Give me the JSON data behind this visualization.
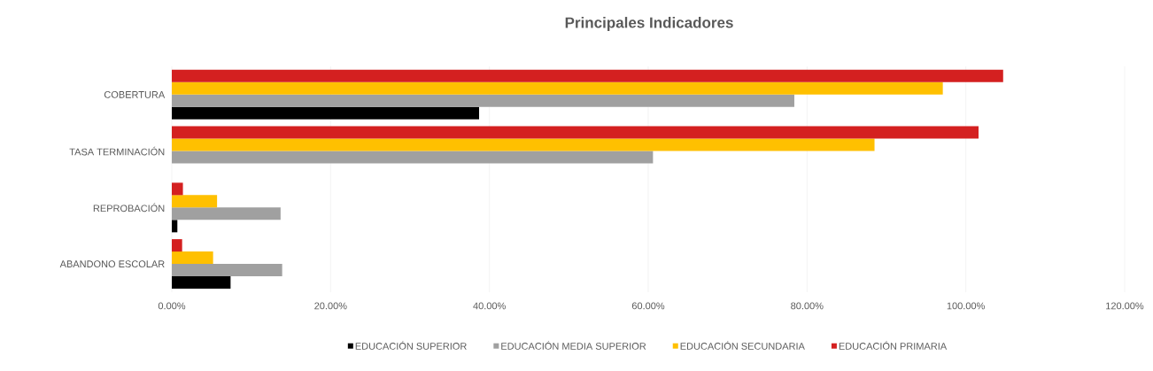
{
  "chart_data": {
    "type": "bar",
    "orientation": "horizontal",
    "title": "Principales Indicadores",
    "categories": [
      "COBERTURA",
      "TASA TERMINACIÓN",
      "REPROBACIÓN",
      "ABANDONO ESCOLAR"
    ],
    "series": [
      {
        "name": "EDUCACIÓN SUPERIOR",
        "color": "#000000",
        "values": [
          38.7,
          null,
          0.7,
          7.4
        ]
      },
      {
        "name": "EDUCACIÓN MEDIA SUPERIOR",
        "color": "#a0a0a0",
        "values": [
          78.4,
          60.6,
          13.7,
          13.9
        ]
      },
      {
        "name": "EDUCACIÓN SECUNDARIA",
        "color": "#ffc000",
        "values": [
          97.1,
          88.5,
          5.7,
          5.2
        ]
      },
      {
        "name": "EDUCACIÓN PRIMARIA",
        "color": "#d42020",
        "values": [
          104.7,
          101.6,
          1.4,
          1.3
        ]
      }
    ],
    "xlim": [
      0,
      120
    ],
    "xticks": [
      {
        "value": 0,
        "label": "0.00%"
      },
      {
        "value": 20,
        "label": "20.00%"
      },
      {
        "value": 40,
        "label": "40.00%"
      },
      {
        "value": 60,
        "label": "60.00%"
      },
      {
        "value": 80,
        "label": "80.00%"
      },
      {
        "value": 100,
        "label": "100.00%"
      },
      {
        "value": 120,
        "label": "120.00%"
      }
    ],
    "grid": "x",
    "legend": "bottom"
  }
}
